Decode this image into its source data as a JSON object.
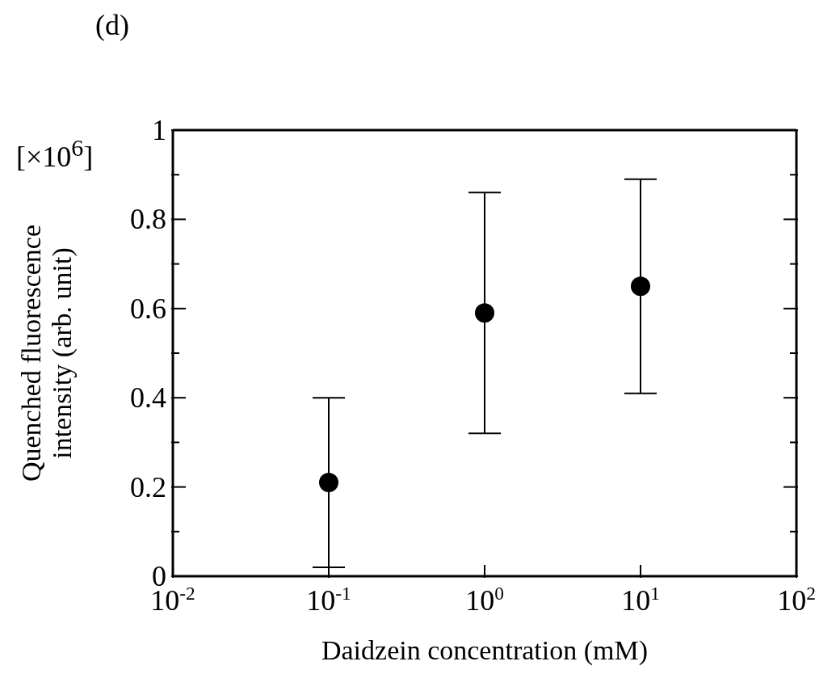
{
  "chart_data": {
    "type": "scatter",
    "xlabel": "Daidzein concentration (mM)",
    "ylabel": "Quenched fluorescence\nintensity (arb. unit)",
    "annotations": [
      "(d)",
      "[×10$^{6}$]"
    ],
    "x": [
      0.1,
      1,
      10
    ],
    "values": [
      0.21,
      0.59,
      0.65
    ],
    "errors": [
      0.19,
      0.27,
      0.24
    ],
    "color": "#000000",
    "marker": "circle",
    "log": "x",
    "xlim": [
      0.01,
      100
    ],
    "xticks": [
      {
        "value": 0.01,
        "label": "10$^{-2}$"
      },
      {
        "value": 0.1,
        "label": "10$^{-1}$"
      },
      {
        "value": 1,
        "label": "10$^{0}$"
      },
      {
        "value": 10,
        "label": "10$^{1}$"
      },
      {
        "value": 100,
        "label": "10$^{2}$"
      }
    ],
    "ylim": [
      0,
      1
    ],
    "yticks": [
      0,
      {
        "value": 0.1,
        "label": null
      },
      0.2,
      {
        "value": 0.3,
        "label": null
      },
      0.4,
      {
        "value": 0.5,
        "label": null
      },
      0.6,
      {
        "value": 0.7,
        "label": null
      },
      0.8,
      {
        "value": 0.9,
        "label": null
      },
      1
    ],
    "grid": false,
    "legend": false
  }
}
